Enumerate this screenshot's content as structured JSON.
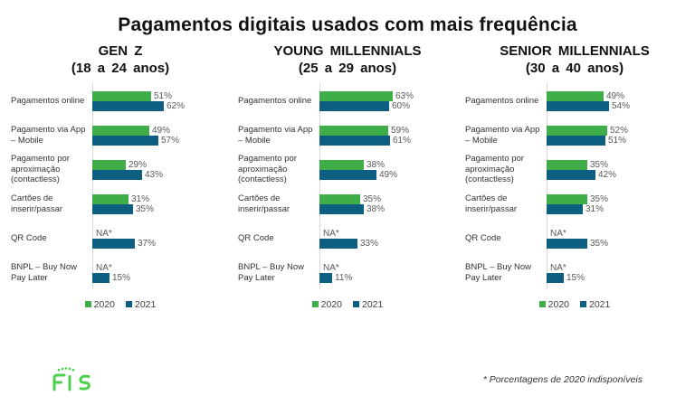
{
  "title": "Pagamentos digitais usados com mais frequência",
  "footnote": "* Porcentagens de 2020 indisponíveis",
  "logo": {
    "brand": "FIS"
  },
  "colors": {
    "green_2020": "#3FAE49",
    "blue_2021": "#0C5F80",
    "value_label": "#595959",
    "axis_line": "#D9D9D9",
    "logo_green": "#4CD04C"
  },
  "legend": {
    "items": [
      {
        "label": "2020",
        "color": "#3FAE49"
      },
      {
        "label": "2021",
        "color": "#0C5F80"
      }
    ]
  },
  "chart_data": [
    {
      "type": "bar",
      "orientation": "horizontal",
      "title": "GEN Z",
      "subtitle": "(18 a 24 anos)",
      "unit": "%",
      "xlim": [
        0,
        70
      ],
      "grid": false,
      "legend_position": "bottom",
      "categories": [
        "Pagamentos online",
        "Pagamento via App – Mobile",
        "Pagamento por aproximação (contactless)",
        "Cartões de inserir/passar",
        "QR Code",
        "BNPL – Buy Now Pay Later"
      ],
      "category_lines": [
        [
          "Pagamentos online"
        ],
        [
          "Pagamento via App",
          "– Mobile"
        ],
        [
          "Pagamento por",
          "aproximação",
          "(contactless)"
        ],
        [
          "Cartões de",
          "inserir/passar"
        ],
        [
          "QR Code"
        ],
        [
          "BNPL – Buy Now",
          "Pay Later"
        ]
      ],
      "series": [
        {
          "name": "2020",
          "color": "#3FAE49",
          "values": [
            51,
            49,
            29,
            31,
            null,
            null
          ],
          "labels": [
            "51%",
            "49%",
            "29%",
            "31%",
            "NA*",
            "NA*"
          ]
        },
        {
          "name": "2021",
          "color": "#0C5F80",
          "values": [
            62,
            57,
            43,
            35,
            37,
            15
          ],
          "labels": [
            "62%",
            "57%",
            "43%",
            "35%",
            "37%",
            "15%"
          ]
        }
      ]
    },
    {
      "type": "bar",
      "orientation": "horizontal",
      "title": "YOUNG MILLENNIALS",
      "subtitle": "(25 a 29 anos)",
      "unit": "%",
      "xlim": [
        0,
        70
      ],
      "grid": false,
      "legend_position": "bottom",
      "categories": [
        "Pagamentos online",
        "Pagamento via App – Mobile",
        "Pagamento por aproximação (contactless)",
        "Cartões de inserir/passar",
        "QR Code",
        "BNPL – Buy Now Pay Later"
      ],
      "category_lines": [
        [
          "Pagamentos online"
        ],
        [
          "Pagamento via App",
          "– Mobile"
        ],
        [
          "Pagamento por",
          "aproximação",
          "(contactless)"
        ],
        [
          "Cartões de",
          "inserir/passar"
        ],
        [
          "QR Code"
        ],
        [
          "BNPL – Buy Now",
          "Pay Later"
        ]
      ],
      "series": [
        {
          "name": "2020",
          "color": "#3FAE49",
          "values": [
            63,
            59,
            38,
            35,
            null,
            null
          ],
          "labels": [
            "63%",
            "59%",
            "38%",
            "35%",
            "NA*",
            "NA*"
          ]
        },
        {
          "name": "2021",
          "color": "#0C5F80",
          "values": [
            60,
            61,
            49,
            38,
            33,
            11
          ],
          "labels": [
            "60%",
            "61%",
            "49%",
            "38%",
            "33%",
            "11%"
          ]
        }
      ]
    },
    {
      "type": "bar",
      "orientation": "horizontal",
      "title": "SENIOR MILLENNIALS",
      "subtitle": "(30 a 40 anos)",
      "unit": "%",
      "xlim": [
        0,
        70
      ],
      "grid": false,
      "legend_position": "bottom",
      "categories": [
        "Pagamentos online",
        "Pagamento via App – Mobile",
        "Pagamento por aproximação (contactless)",
        "Cartões de inserir/passar",
        "QR Code",
        "BNPL – Buy Now Pay Later"
      ],
      "category_lines": [
        [
          "Pagamentos online"
        ],
        [
          "Pagamento via App",
          "– Mobile"
        ],
        [
          "Pagamento por",
          "aproximação",
          "(contactless)"
        ],
        [
          "Cartões de",
          "inserir/passar"
        ],
        [
          "QR Code"
        ],
        [
          "BNPL – Buy Now",
          "Pay Later"
        ]
      ],
      "series": [
        {
          "name": "2020",
          "color": "#3FAE49",
          "values": [
            49,
            52,
            35,
            35,
            null,
            null
          ],
          "labels": [
            "49%",
            "52%",
            "35%",
            "35%",
            "NA*",
            "NA*"
          ]
        },
        {
          "name": "2021",
          "color": "#0C5F80",
          "values": [
            54,
            51,
            42,
            31,
            35,
            15
          ],
          "labels": [
            "54%",
            "51%",
            "42%",
            "31%",
            "35%",
            "15%"
          ]
        }
      ]
    }
  ]
}
